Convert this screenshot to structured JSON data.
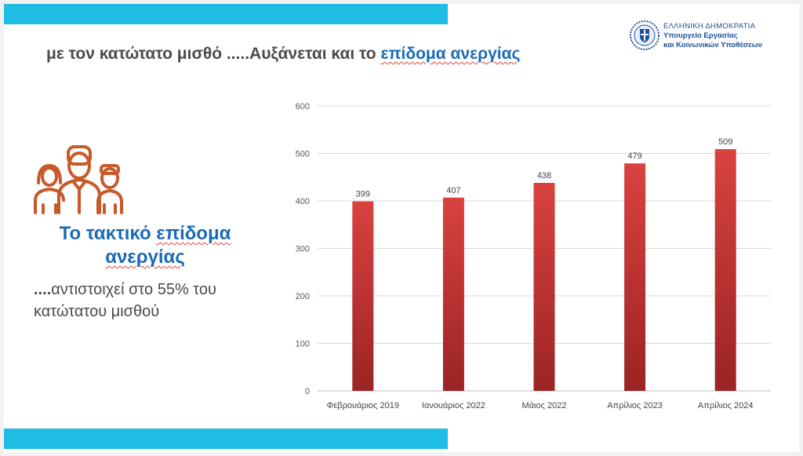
{
  "headline": {
    "part1": "με τον κατώτατο μισθό .....Αυξάνεται και το ",
    "part2": "επίδομα ανεργίας"
  },
  "logo": {
    "line1": "ΕΛΛΗΝΙΚΗ ΔΗΜΟΚΡΑΤΙΑ",
    "line2": "Υπουργείο Εργασίας",
    "line3": "και Κοινωνικών Υποθέσεων",
    "icon": "greek-emblem-icon"
  },
  "left_panel": {
    "icon": "family-icon",
    "title_part1": "Το τακτικό ",
    "title_part2": "επίδομα",
    "title_part3": "ανεργίας",
    "note_bold": "....",
    "note_text": "αντιστοιχεί στο 55% του κατώτατου μισθού"
  },
  "colors": {
    "accent_blue": "#1fbde6",
    "title_blue": "#1a6bb4",
    "bar_top": "#d9423f",
    "bar_bottom": "#9b2424",
    "icon_orange": "#c85a2a"
  },
  "chart_data": {
    "type": "bar",
    "categories": [
      "Φεβρουάριος 2019",
      "Ιανουάριος 2022",
      "Μάιος 2022",
      "Απρίλιος 2023",
      "Απρίλιος 2024"
    ],
    "values": [
      399,
      407,
      438,
      479,
      509
    ],
    "ylim": [
      0,
      600
    ],
    "yticks": [
      0,
      100,
      200,
      300,
      400,
      500,
      600
    ],
    "grid": true,
    "data_labels": true
  }
}
